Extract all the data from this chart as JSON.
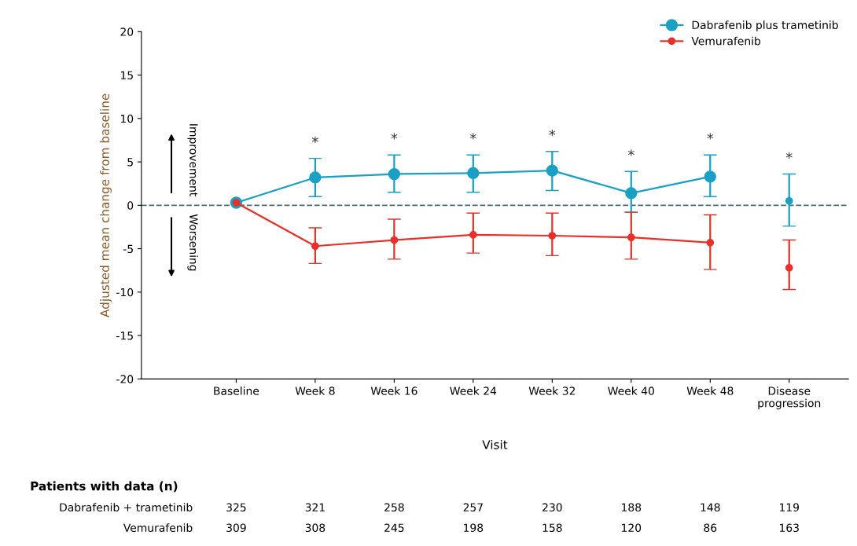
{
  "chart_data": {
    "type": "line",
    "categories": [
      "Baseline",
      "Week 8",
      "Week 16",
      "Week 24",
      "Week 32",
      "Week 40",
      "Week 48",
      "Disease\nprogression"
    ],
    "xlabel": "Visit",
    "ylabel": "Adjusted mean change from baseline",
    "ylim": [
      -20,
      20
    ],
    "yticks": [
      -20,
      -15,
      -10,
      -5,
      0,
      5,
      10,
      15,
      20
    ],
    "marker": "circle",
    "line_style": "solid",
    "grid": false,
    "legend": "top right",
    "series": [
      {
        "name": "Dabrafenib plus trametinib",
        "color": "#1aa0c4",
        "values": [
          0.3,
          3.2,
          3.6,
          3.7,
          4.0,
          1.4,
          3.3,
          null
        ],
        "errors": [
          null,
          [
            1.0,
            5.4
          ],
          [
            1.5,
            5.8
          ],
          [
            1.5,
            5.8
          ],
          [
            1.7,
            6.2
          ],
          [
            -0.8,
            3.9
          ],
          [
            1.0,
            5.8
          ],
          null
        ]
      },
      {
        "name": "Vemurafenib",
        "color": "#e8302a",
        "values": [
          0.3,
          -4.7,
          -4.0,
          -3.4,
          -3.5,
          -3.7,
          -4.3,
          null
        ],
        "errors": [
          null,
          [
            -6.7,
            -2.6
          ],
          [
            -6.2,
            -1.6
          ],
          [
            -5.5,
            -0.9
          ],
          [
            -5.8,
            -0.9
          ],
          [
            -6.2,
            -0.8
          ],
          [
            -7.4,
            -1.1
          ],
          null
        ]
      },
      {
        "type": "scatter",
        "color": "#1aa0c4",
        "values": [
          null,
          null,
          null,
          null,
          null,
          null,
          null,
          0.5
        ],
        "errors": [
          null,
          null,
          null,
          null,
          null,
          null,
          null,
          [
            -2.4,
            3.6
          ]
        ]
      },
      {
        "type": "scatter",
        "color": "#e8302a",
        "values": [
          null,
          null,
          null,
          null,
          null,
          null,
          null,
          -7.2
        ],
        "errors": [
          null,
          null,
          null,
          null,
          null,
          null,
          null,
          [
            -9.7,
            -4.0
          ]
        ]
      }
    ],
    "ref_lines": [
      {
        "axis": "y",
        "value": 0,
        "color": "#4a6a70",
        "line_style": "dashed"
      }
    ],
    "annotations": [
      "*",
      "*",
      "*",
      "*",
      "*",
      "*",
      "*",
      "Improvement",
      "Worsening",
      "Patients with data (n)",
      "Dabrafenib + trametinib",
      "Vemurafenib",
      "325",
      "321",
      "258",
      "257",
      "230",
      "188",
      "148",
      "119",
      "309",
      "308",
      "245",
      "198",
      "158",
      "120",
      "86",
      "163"
    ]
  }
}
